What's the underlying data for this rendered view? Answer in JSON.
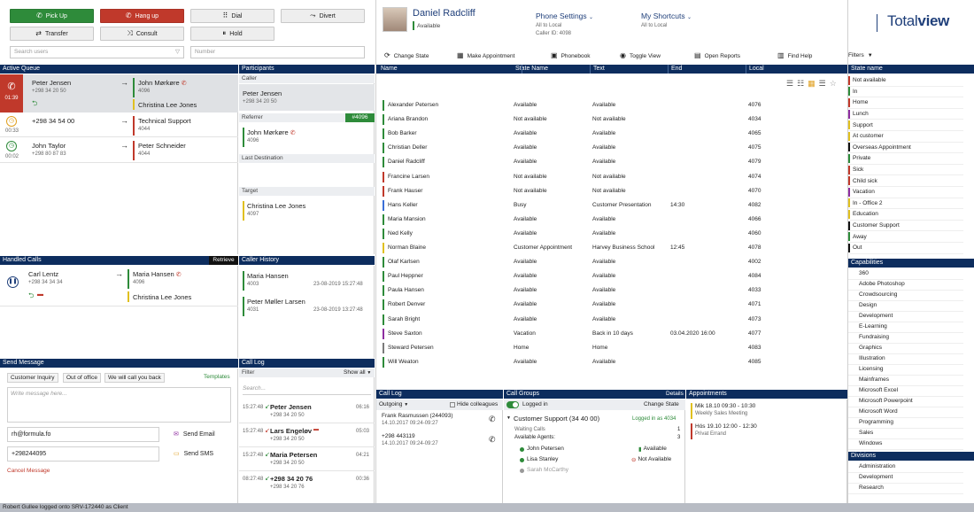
{
  "buttons": {
    "pickup": "Pick Up",
    "hangup": "Hang up",
    "dial": "Dial",
    "divert": "Divert",
    "transfer": "Transfer",
    "consult": "Consult",
    "hold": "Hold"
  },
  "search": {
    "users_placeholder": "Search users",
    "number_placeholder": "Number"
  },
  "profile": {
    "name": "Daniel Radcliff",
    "status": "Available",
    "phone_settings_label": "Phone Settings",
    "phone_settings_line1": "All to Local",
    "phone_settings_line2": "Caller ID: 4098",
    "shortcuts_label": "My Shortcuts",
    "shortcuts_line1": "All to Local",
    "brand_a": "Total",
    "brand_b": "view"
  },
  "toolbar": {
    "change_state": "Change State",
    "make_appointment": "Make Appointment",
    "phonebook": "Phonebook",
    "toggle_view": "Toggle View",
    "open_reports": "Open Reports",
    "find_help": "Find Help",
    "filters": "Filters"
  },
  "active_queue": {
    "title": "Active Queue",
    "calls": [
      {
        "time": "01:39",
        "caller": "Peter Jensen",
        "caller_num": "+298 34 20 50",
        "target": "John Mørkøre",
        "target_num": "4096",
        "extra": "Christina Lee Jones",
        "type": "active",
        "target_color": "#2e8b3a",
        "extra_color": "#e0c020"
      },
      {
        "time": "00:33",
        "caller": "+298 34 54 00",
        "caller_num": "",
        "target": "Technical Support",
        "target_num": "4044",
        "extra": "",
        "type": "ringing",
        "target_color": "#c0392b",
        "extra_color": ""
      },
      {
        "time": "00:02",
        "caller": "John Taylor",
        "caller_num": "+298 80 87 83",
        "target": "Peter Schneider",
        "target_num": "4044",
        "extra": "",
        "type": "incoming",
        "target_color": "#c0392b",
        "extra_color": ""
      }
    ]
  },
  "participants": {
    "title": "Participants",
    "caller_label": "Caller",
    "caller_name": "Peter Jensen",
    "caller_num": "+298 34 20 50",
    "referrer_label": "Referrer",
    "referrer_badge": "#4096",
    "referrer_name": "John Mørkøre",
    "referrer_num": "4096",
    "last_dest_label": "Last Destination",
    "target_label": "Target",
    "target_name": "Christina Lee Jones",
    "target_num": "4097"
  },
  "handled_calls": {
    "title": "Handled Calls",
    "retrieve": "Retrieve",
    "caller": "Carl Lentz",
    "caller_num": "+298 34 34 34",
    "target": "Maria Hansen",
    "target_num": "4096",
    "extra": "Christina Lee Jones"
  },
  "caller_history": {
    "title": "Caller History",
    "items": [
      {
        "name": "Maria Hansen",
        "num": "4003",
        "date": "23-08-2019 15:27:48"
      },
      {
        "name": "Peter Møller Larsen",
        "num": "4031",
        "date": "23-08-2019 13:27:48"
      }
    ]
  },
  "send_message": {
    "title": "Send Message",
    "quick": [
      "Customer Inquiry",
      "Out of office",
      "We will call you back"
    ],
    "templates": "Templates",
    "placeholder": "Write message here...",
    "email": "rh@formula.fo",
    "phone": "+298244095",
    "send_email": "Send Email",
    "send_sms": "Send SMS",
    "cancel": "Cancel Message"
  },
  "call_log_left": {
    "title": "Call Log",
    "filter_label": "Filter",
    "filter_value": "Show all",
    "search_placeholder": "Search...",
    "items": [
      {
        "time": "15:27:48",
        "name": "Peter Jensen",
        "num": "+298 34 20 50",
        "dur": "06:16",
        "sms": false
      },
      {
        "time": "15:27:48",
        "name": "Lars Engeløv",
        "num": "+298 34 20 50",
        "dur": "05:03",
        "sms": true
      },
      {
        "time": "15:27:48",
        "name": "Maria Petersen",
        "num": "+298 34 20 50",
        "dur": "04:21",
        "sms": false
      },
      {
        "time": "08:27:48",
        "name": "+298 34 20 76",
        "num": "+298 34 20 76",
        "dur": "00:36",
        "sms": false
      }
    ]
  },
  "users_table": {
    "columns": [
      "Name",
      "State Name",
      "Text",
      "End",
      "Local"
    ],
    "rows": [
      {
        "name": "Alexander Petersen",
        "state": "Available",
        "text": "Available",
        "end": "",
        "local": "4076",
        "color": "#2e8b3a"
      },
      {
        "name": "Ariana Brandon",
        "state": "Not available",
        "text": "Not available",
        "end": "",
        "local": "4034",
        "color": "#2e8b3a"
      },
      {
        "name": "Bob Barker",
        "state": "Available",
        "text": "Available",
        "end": "",
        "local": "4065",
        "color": "#2e8b3a"
      },
      {
        "name": "Christian Deller",
        "state": "Available",
        "text": "Available",
        "end": "",
        "local": "4075",
        "color": "#2e8b3a"
      },
      {
        "name": "Daniel Radcliff",
        "state": "Available",
        "text": "Available",
        "end": "",
        "local": "4079",
        "color": "#2e8b3a"
      },
      {
        "name": "Francine Larsen",
        "state": "Not available",
        "text": "Not available",
        "end": "",
        "local": "4074",
        "color": "#c0392b"
      },
      {
        "name": "Frank Hauser",
        "state": "Not available",
        "text": "Not available",
        "end": "",
        "local": "4070",
        "color": "#c0392b"
      },
      {
        "name": "Hans Keller",
        "state": "Busy",
        "text": "Customer Presentation",
        "end": "14:30",
        "local": "4082",
        "color": "#3a6fd8"
      },
      {
        "name": "Maria Mansion",
        "state": "Available",
        "text": "Available",
        "end": "",
        "local": "4066",
        "color": "#2e8b3a"
      },
      {
        "name": "Ned Kelly",
        "state": "Available",
        "text": "Available",
        "end": "",
        "local": "4060",
        "color": "#2e8b3a"
      },
      {
        "name": "Norman Blaine",
        "state": "Customer Appointment",
        "text": "Harvey Business School",
        "end": "12:45",
        "local": "4078",
        "color": "#e0c020"
      },
      {
        "name": "Olaf Karlsen",
        "state": "Available",
        "text": "Available",
        "end": "",
        "local": "4002",
        "color": "#2e8b3a"
      },
      {
        "name": "Paul Heppner",
        "state": "Available",
        "text": "Available",
        "end": "",
        "local": "4084",
        "color": "#2e8b3a"
      },
      {
        "name": "Paula Hansen",
        "state": "Available",
        "text": "Available",
        "end": "",
        "local": "4033",
        "color": "#2e8b3a"
      },
      {
        "name": "Robert Denver",
        "state": "Available",
        "text": "Available",
        "end": "",
        "local": "4071",
        "color": "#2e8b3a"
      },
      {
        "name": "Sarah Bright",
        "state": "Available",
        "text": "Available",
        "end": "",
        "local": "4073",
        "color": "#2e8b3a"
      },
      {
        "name": "Steve Saxton",
        "state": "Vacation",
        "text": "Back in 10 days",
        "end": "03.04.2020 16:00",
        "local": "4077",
        "color": "#8e2ea0"
      },
      {
        "name": "Steward Petersen",
        "state": "Home",
        "text": "Home",
        "end": "",
        "local": "4083",
        "color": "#7a7a7a"
      },
      {
        "name": "Will Weaton",
        "state": "Available",
        "text": "Available",
        "end": "",
        "local": "4085",
        "color": "#2e8b3a"
      }
    ]
  },
  "call_log_bottom": {
    "title": "Call Log",
    "outgoing": "Outgoing",
    "hide_colleagues": "Hide colleagues",
    "items": [
      {
        "name": "Frank Rasmussen (244093)",
        "date": "14.10.2017",
        "time": "09:24-09:27"
      },
      {
        "name": "+298 443119",
        "date": "14.10.2017",
        "time": "09:24-09:27"
      }
    ]
  },
  "call_groups": {
    "title": "Call Groups",
    "details": "Details",
    "logged_in": "Logged in",
    "change_state": "Change State",
    "group_name": "Customer Support (34 40 00)",
    "group_status": "Logged in as 4034",
    "waiting_label": "Waiting Calls",
    "waiting_val": "1",
    "agents_label": "Available Agents:",
    "agents_val": "3",
    "agents": [
      {
        "name": "John Petersen",
        "status": "Available",
        "dot": "#2e8b3a"
      },
      {
        "name": "Lisa Stanley",
        "status": "Not Available",
        "dot": "#2e8b3a"
      },
      {
        "name": "Sarah McCarthy",
        "status": "",
        "dot": "#999999"
      }
    ]
  },
  "appointments": {
    "title": "Appointments",
    "items": [
      {
        "when": "Mik 18.10   09:30 - 10:30",
        "what": "Weekly Sales Meeting",
        "color": "#e0c020"
      },
      {
        "when": "Hós 19.10   12:00 - 12:30",
        "what": "Privat Errand",
        "color": "#c0392b"
      }
    ]
  },
  "state_names": {
    "title": "State name",
    "items": [
      {
        "label": "Not available",
        "color": "#c0392b"
      },
      {
        "label": "In",
        "color": "#2e8b3a"
      },
      {
        "label": "Home",
        "color": "#c0392b"
      },
      {
        "label": "Lunch",
        "color": "#8e2ea0"
      },
      {
        "label": "Support",
        "color": "#e0c020"
      },
      {
        "label": "At customer",
        "color": "#e0c020"
      },
      {
        "label": "Overseas Appointment",
        "color": "#111111"
      },
      {
        "label": "Private",
        "color": "#2e8b3a"
      },
      {
        "label": "Sick",
        "color": "#c0392b"
      },
      {
        "label": "Child sick",
        "color": "#c0392b"
      },
      {
        "label": "Vacation",
        "color": "#8e2ea0"
      },
      {
        "label": "In - Office 2",
        "color": "#e0c020"
      },
      {
        "label": "Education",
        "color": "#e0c020"
      },
      {
        "label": "Customer Support",
        "color": "#111111"
      },
      {
        "label": "Away",
        "color": "#2e8b3a"
      },
      {
        "label": "Out",
        "color": "#111111"
      }
    ]
  },
  "capabilities": {
    "title": "Capabilities",
    "items": [
      "360",
      "Adobe Photoshop",
      "Crowdsourcing",
      "Design",
      "Development",
      "E-Learning",
      "Fundraising",
      "Graphics",
      "Illustration",
      "Licensing",
      "Mainframes",
      "Microsoft Excel",
      "Microsoft Powerpoint",
      "Microsoft Word",
      "Programming",
      "Sales",
      "Windows"
    ]
  },
  "divisions": {
    "title": "Divisions",
    "items": [
      "Administration",
      "Development",
      "Research"
    ]
  },
  "status_bar": "Robert Gullee logged onto SRV-172440 as Client"
}
